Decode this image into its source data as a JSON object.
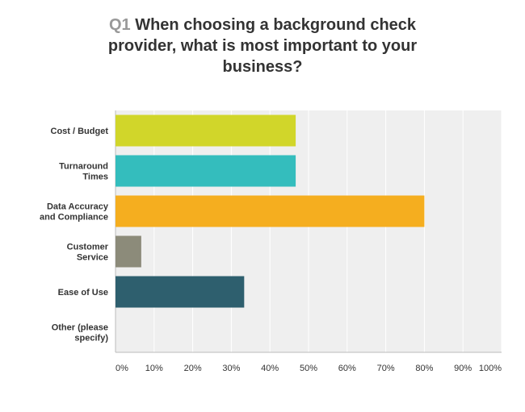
{
  "question": {
    "number": "Q1",
    "text": "When choosing a background check provider, what is most important to your business?"
  },
  "chart_data": {
    "type": "bar",
    "orientation": "horizontal",
    "title": "Q1 When choosing a background check provider, what is most important to your business?",
    "categories": [
      [
        "Cost / Budget"
      ],
      [
        "Turnaround",
        "Times"
      ],
      [
        "Data Accuracy",
        "and Compliance"
      ],
      [
        "Customer",
        "Service"
      ],
      [
        "Ease of Use"
      ],
      [
        "Other (please",
        "specify)"
      ]
    ],
    "values": [
      46.67,
      46.67,
      80.0,
      6.67,
      33.33,
      0
    ],
    "colors": [
      "#d1d62a",
      "#34bdbd",
      "#f5ae1f",
      "#8c8b7a",
      "#2e5f6e",
      "#cccccc"
    ],
    "xlim": [
      0,
      100
    ],
    "x_ticks": [
      "0%",
      "10%",
      "20%",
      "30%",
      "40%",
      "50%",
      "60%",
      "70%",
      "80%",
      "90%",
      "100%"
    ],
    "grid": true,
    "plot_background": "#efefef",
    "gridline_color": "#ffffff"
  }
}
